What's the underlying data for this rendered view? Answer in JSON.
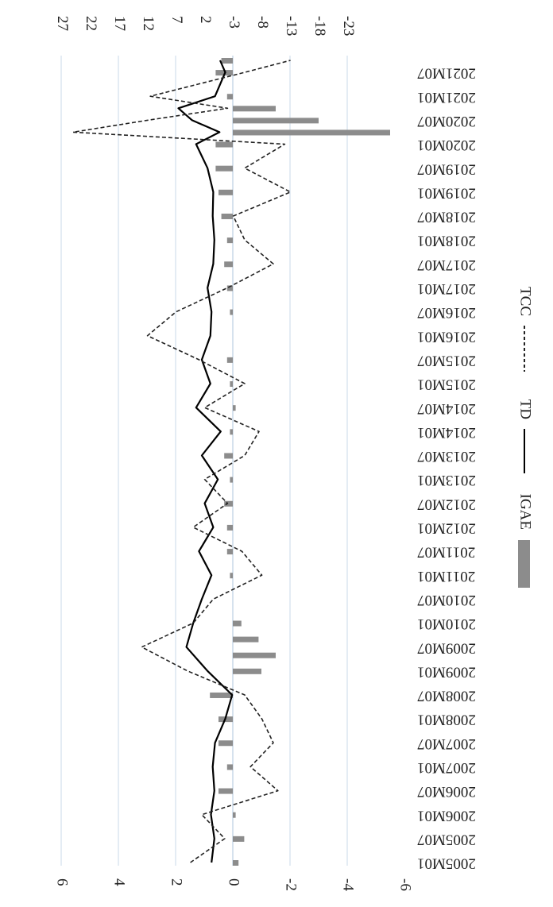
{
  "chart_data": {
    "type": "bar-line",
    "orientation": "rotated-90",
    "x_tick_labels": [
      "2005M01",
      "2005M07",
      "2006M01",
      "2006M07",
      "2007M01",
      "2007M07",
      "2008M01",
      "2008M07",
      "2009M01",
      "2009M07",
      "2010M01",
      "2010M07",
      "2011M01",
      "2011M07",
      "2012M01",
      "2012M07",
      "2013M01",
      "2013M07",
      "2014M01",
      "2014M07",
      "2015M01",
      "2015M07",
      "2016M01",
      "2016M07",
      "2017M01",
      "2017M07",
      "2018M01",
      "2018M07",
      "2019M01",
      "2019M07",
      "2020M01",
      "2020M07",
      "2021M01",
      "2021M07"
    ],
    "left_axis": {
      "ticks": [
        "-6",
        "-4",
        "-2",
        "0",
        "2",
        "4",
        "6"
      ],
      "range": [
        -6,
        6
      ]
    },
    "right_axis": {
      "ticks": [
        "-23",
        "-18",
        "-13",
        "-8",
        "-3",
        "2",
        "7",
        "12",
        "17",
        "22",
        "27"
      ],
      "range": [
        -23,
        27
      ]
    },
    "grid": true,
    "series": [
      {
        "name": "IGAE",
        "type": "bar",
        "axis": "left",
        "color": "#8c8c8c",
        "key_points": [
          {
            "x": "2005M01",
            "y": -0.2
          },
          {
            "x": "2005M07",
            "y": -0.4
          },
          {
            "x": "2006M01",
            "y": -0.1
          },
          {
            "x": "2006M07",
            "y": 0.5
          },
          {
            "x": "2007M01",
            "y": 0.2
          },
          {
            "x": "2007M07",
            "y": 0.5
          },
          {
            "x": "2008M01",
            "y": 0.5
          },
          {
            "x": "2008M07",
            "y": 0.8
          },
          {
            "x": "2009M01",
            "y": -1.0
          },
          {
            "x": "2009M05",
            "y": -1.5
          },
          {
            "x": "2009M09",
            "y": -0.9
          },
          {
            "x": "2010M01",
            "y": -0.3
          },
          {
            "x": "2010M07",
            "y": 0.0
          },
          {
            "x": "2011M01",
            "y": 0.1
          },
          {
            "x": "2011M07",
            "y": 0.2
          },
          {
            "x": "2012M01",
            "y": 0.2
          },
          {
            "x": "2012M07",
            "y": 0.3
          },
          {
            "x": "2013M01",
            "y": 0.1
          },
          {
            "x": "2013M07",
            "y": 0.3
          },
          {
            "x": "2014M01",
            "y": 0.1
          },
          {
            "x": "2014M07",
            "y": -0.1
          },
          {
            "x": "2015M01",
            "y": 0.1
          },
          {
            "x": "2015M07",
            "y": 0.2
          },
          {
            "x": "2016M01",
            "y": 0.0
          },
          {
            "x": "2016M07",
            "y": 0.1
          },
          {
            "x": "2017M01",
            "y": 0.2
          },
          {
            "x": "2017M07",
            "y": 0.3
          },
          {
            "x": "2018M01",
            "y": 0.2
          },
          {
            "x": "2018M07",
            "y": 0.4
          },
          {
            "x": "2019M01",
            "y": 0.5
          },
          {
            "x": "2019M07",
            "y": 0.6
          },
          {
            "x": "2020M01",
            "y": 0.6
          },
          {
            "x": "2020M04",
            "y": -5.5
          },
          {
            "x": "2020M07",
            "y": -3.0
          },
          {
            "x": "2020M10",
            "y": -1.5
          },
          {
            "x": "2021M01",
            "y": 0.2
          },
          {
            "x": "2021M07",
            "y": 0.6
          },
          {
            "x": "2021M10",
            "y": 0.4
          }
        ]
      },
      {
        "name": "TD",
        "type": "line",
        "axis": "right",
        "color": "#000000",
        "key_points": [
          {
            "x": "2005M01",
            "y": 0.8
          },
          {
            "x": "2005M07",
            "y": 0.3
          },
          {
            "x": "2006M01",
            "y": 0.9
          },
          {
            "x": "2006M07",
            "y": 0.3
          },
          {
            "x": "2007M01",
            "y": 0.6
          },
          {
            "x": "2007M07",
            "y": 0.2
          },
          {
            "x": "2008M01",
            "y": -1.6
          },
          {
            "x": "2008M07",
            "y": -2.8
          },
          {
            "x": "2009M01",
            "y": 1.5
          },
          {
            "x": "2009M07",
            "y": 5.2
          },
          {
            "x": "2010M01",
            "y": 4.0
          },
          {
            "x": "2010M07",
            "y": 2.5
          },
          {
            "x": "2011M01",
            "y": 0.8
          },
          {
            "x": "2011M07",
            "y": 3.0
          },
          {
            "x": "2012M01",
            "y": 0.5
          },
          {
            "x": "2012M07",
            "y": 2.0
          },
          {
            "x": "2013M01",
            "y": -0.3
          },
          {
            "x": "2013M07",
            "y": 2.5
          },
          {
            "x": "2014M01",
            "y": -0.8
          },
          {
            "x": "2014M07",
            "y": 3.5
          },
          {
            "x": "2015M01",
            "y": 1.0
          },
          {
            "x": "2015M07",
            "y": 2.5
          },
          {
            "x": "2016M01",
            "y": 1.0
          },
          {
            "x": "2016M07",
            "y": 0.8
          },
          {
            "x": "2017M01",
            "y": 1.5
          },
          {
            "x": "2017M07",
            "y": 0.5
          },
          {
            "x": "2018M01",
            "y": 0.3
          },
          {
            "x": "2018M07",
            "y": 0.6
          },
          {
            "x": "2019M01",
            "y": 0.5
          },
          {
            "x": "2019M07",
            "y": 1.5
          },
          {
            "x": "2020M01",
            "y": 3.5
          },
          {
            "x": "2020M04",
            "y": -0.6
          },
          {
            "x": "2020M07",
            "y": 4.2
          },
          {
            "x": "2020M10",
            "y": 6.6
          },
          {
            "x": "2021M01",
            "y": 0.2
          },
          {
            "x": "2021M07",
            "y": -1.6
          },
          {
            "x": "2021M10",
            "y": -0.7
          }
        ]
      },
      {
        "name": "TCC",
        "type": "dashed-line",
        "axis": "right",
        "color": "#222222",
        "key_points": [
          {
            "x": "2005M01",
            "y": 4.5
          },
          {
            "x": "2005M07",
            "y": -1.5
          },
          {
            "x": "2006M01",
            "y": 2.5
          },
          {
            "x": "2006M07",
            "y": -10.8
          },
          {
            "x": "2007M01",
            "y": -6.0
          },
          {
            "x": "2007M07",
            "y": -10.0
          },
          {
            "x": "2008M01",
            "y": -8.0
          },
          {
            "x": "2008M07",
            "y": -5.0
          },
          {
            "x": "2009M01",
            "y": 5.0
          },
          {
            "x": "2009M07",
            "y": 13.0
          },
          {
            "x": "2010M01",
            "y": 4.0
          },
          {
            "x": "2010M07",
            "y": 0.5
          },
          {
            "x": "2011M01",
            "y": -8.0
          },
          {
            "x": "2011M07",
            "y": -4.5
          },
          {
            "x": "2012M01",
            "y": 4.0
          },
          {
            "x": "2012M07",
            "y": -2.0
          },
          {
            "x": "2013M01",
            "y": 2.0
          },
          {
            "x": "2013M07",
            "y": -5.0
          },
          {
            "x": "2014M01",
            "y": -7.5
          },
          {
            "x": "2014M07",
            "y": 2.0
          },
          {
            "x": "2015M01",
            "y": -5.0
          },
          {
            "x": "2015M07",
            "y": 3.0
          },
          {
            "x": "2016M01",
            "y": 12.0
          },
          {
            "x": "2016M07",
            "y": 7.0
          },
          {
            "x": "2017M01",
            "y": -2.0
          },
          {
            "x": "2017M07",
            "y": -10.0
          },
          {
            "x": "2018M01",
            "y": -5.0
          },
          {
            "x": "2018M07",
            "y": -3.0
          },
          {
            "x": "2019M01",
            "y": -13.0
          },
          {
            "x": "2019M07",
            "y": -5.0
          },
          {
            "x": "2020M01",
            "y": -12.0
          },
          {
            "x": "2020M04",
            "y": 25.0
          },
          {
            "x": "2020M07",
            "y": 12.0
          },
          {
            "x": "2020M10",
            "y": -2.0
          },
          {
            "x": "2021M01",
            "y": 11.5
          },
          {
            "x": "2021M07",
            "y": -5.0
          },
          {
            "x": "2021M10",
            "y": -13.0
          }
        ]
      }
    ],
    "legend": {
      "items": [
        "IGAE",
        "TD",
        "TCC"
      ],
      "position": "bottom"
    }
  }
}
